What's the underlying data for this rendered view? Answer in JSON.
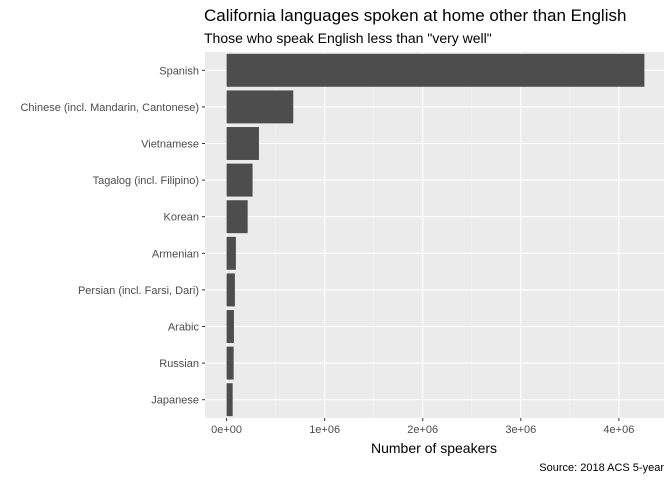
{
  "chart_data": {
    "type": "bar",
    "orientation": "horizontal",
    "title": "California languages spoken at home other than English",
    "subtitle": "Those who speak English less than \"very well\"",
    "xlabel": "Number of speakers",
    "ylabel": "",
    "caption": "Source: 2018 ACS 5-year",
    "categories": [
      "Spanish",
      "Chinese (incl. Mandarin, Cantonese)",
      "Vietnamese",
      "Tagalog (incl. Filipino)",
      "Korean",
      "Armenian",
      "Persian (incl. Farsi, Dari)",
      "Arabic",
      "Russian",
      "Japanese"
    ],
    "values": [
      4260000,
      680000,
      330000,
      265000,
      215000,
      95000,
      85000,
      75000,
      72000,
      62000
    ],
    "xlim": [
      -220000,
      4460000
    ],
    "xticks": [
      0,
      1000000,
      2000000,
      3000000,
      4000000
    ],
    "xtick_labels": [
      "0e+00",
      "1e+06",
      "2e+06",
      "3e+06",
      "4e+06"
    ],
    "grid": true,
    "legend": "none",
    "colors": {
      "bar": "#4d4d4d",
      "panel": "#ebebeb",
      "grid_major": "#ffffff",
      "grid_minor": "#f5f5f5",
      "tick_text": "#4d4d4d",
      "tick_mark": "#333333"
    }
  }
}
